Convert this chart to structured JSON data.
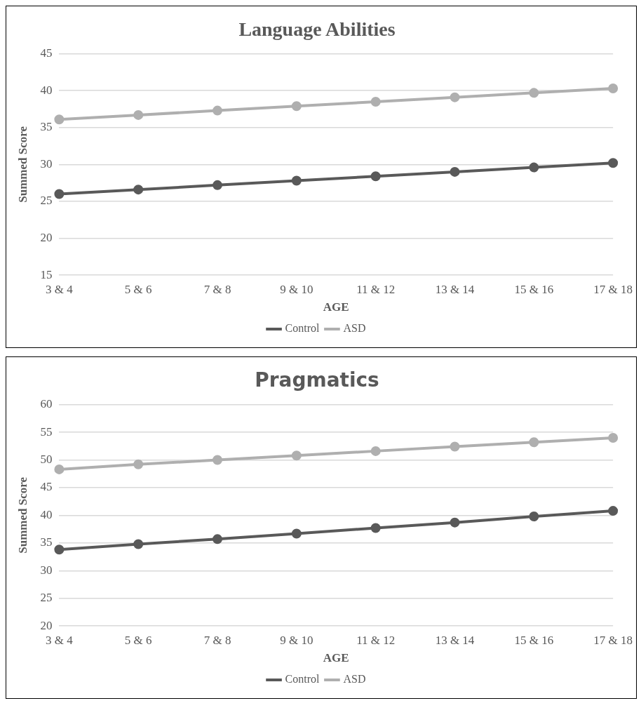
{
  "chart_data": [
    {
      "type": "line",
      "title": "Language Abilities",
      "xlabel": "AGE",
      "ylabel": "Summed Score",
      "categories": [
        "3 & 4",
        "5 & 6",
        "7 & 8",
        "9 & 10",
        "11 & 12",
        "13 & 14",
        "15 & 16",
        "17 & 18"
      ],
      "series": [
        {
          "name": "Control",
          "color": "#595959",
          "values": [
            26.0,
            26.6,
            27.2,
            27.8,
            28.4,
            29.0,
            29.6,
            30.2
          ]
        },
        {
          "name": "ASD",
          "color": "#afafaf",
          "values": [
            36.1,
            36.7,
            37.3,
            37.9,
            38.5,
            39.1,
            39.7,
            40.3
          ]
        }
      ],
      "ylim": [
        15,
        45
      ],
      "yticks": [
        15,
        20,
        25,
        30,
        35,
        40,
        45
      ],
      "grid": "y",
      "legend": "bottom",
      "marker": "circle",
      "line_style": "solid"
    },
    {
      "type": "line",
      "title": "Pragmatics",
      "xlabel": "AGE",
      "ylabel": "Summed Score",
      "categories": [
        "3 & 4",
        "5 & 6",
        "7 & 8",
        "9 & 10",
        "11 & 12",
        "13 & 14",
        "15 & 16",
        "17 & 18"
      ],
      "series": [
        {
          "name": "Control",
          "color": "#595959",
          "values": [
            33.8,
            34.8,
            35.7,
            36.7,
            37.7,
            38.7,
            39.8,
            40.8
          ]
        },
        {
          "name": "ASD",
          "color": "#afafaf",
          "values": [
            48.3,
            49.2,
            50.0,
            50.8,
            51.6,
            52.4,
            53.2,
            54.0
          ]
        }
      ],
      "ylim": [
        20,
        60
      ],
      "yticks": [
        20,
        25,
        30,
        35,
        40,
        45,
        50,
        55,
        60
      ],
      "grid": "y",
      "legend": "bottom",
      "marker": "circle",
      "line_style": "solid"
    }
  ]
}
